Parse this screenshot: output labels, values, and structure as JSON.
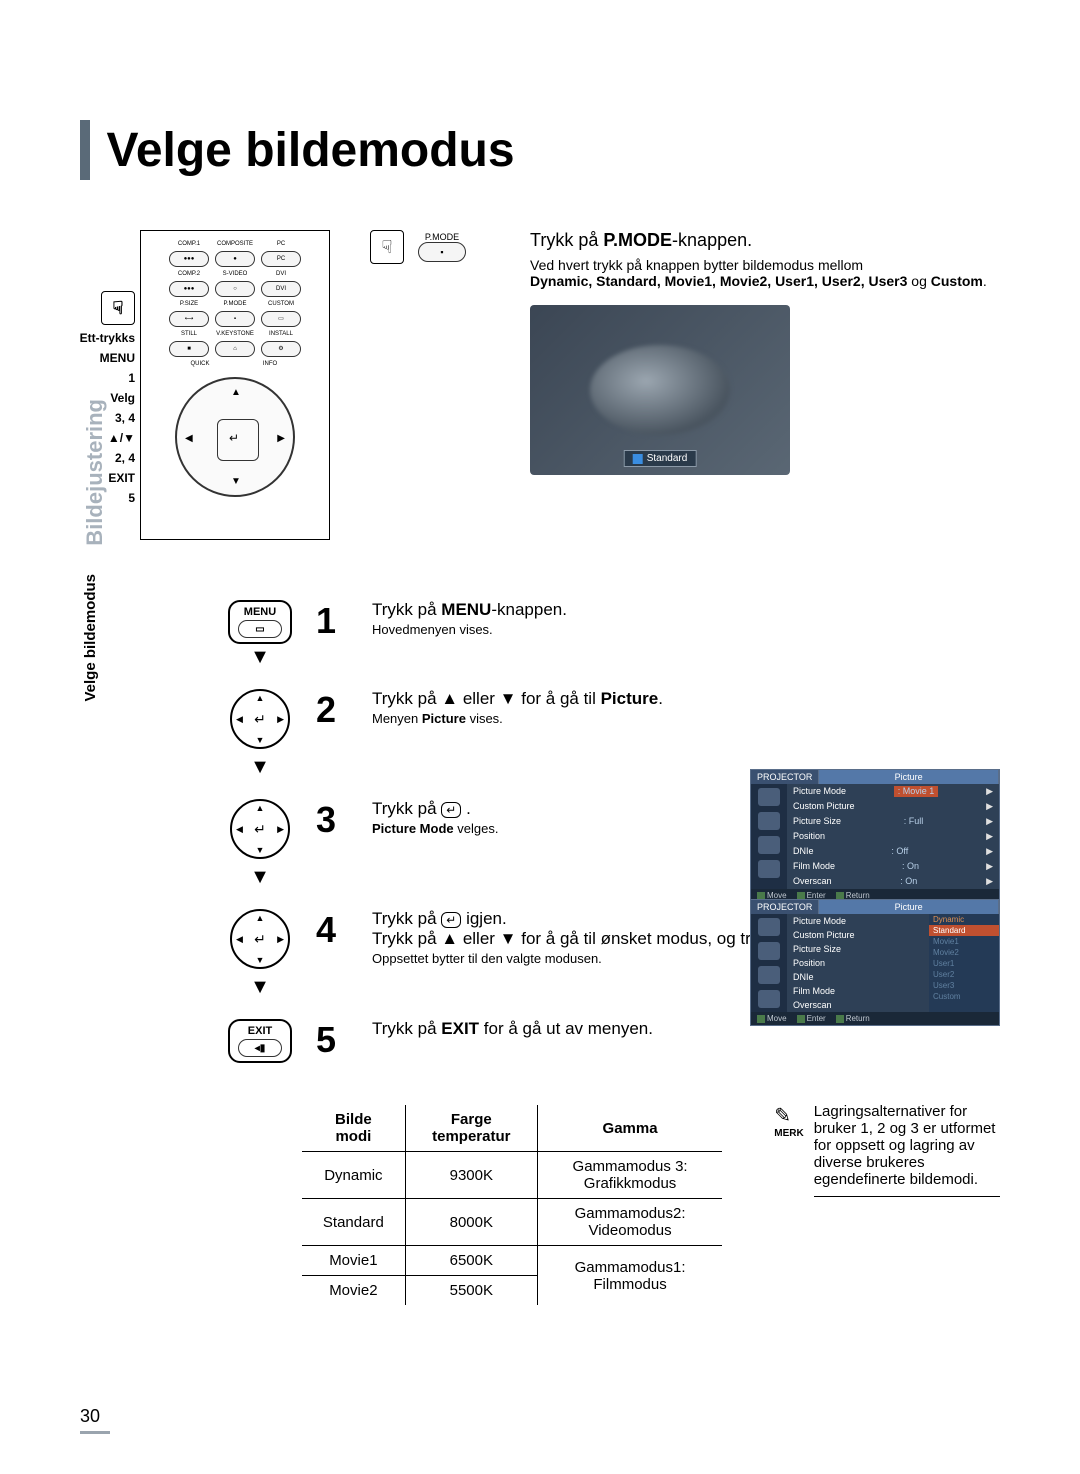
{
  "page_number": "30",
  "title": "Velge bildemodus",
  "side_tabs": {
    "gray": "Bildejustering",
    "black": "Velge bildemodus"
  },
  "remote": {
    "hand_glyph": "☟",
    "labels": [
      "Ett-trykks",
      "MENU",
      "1",
      "Velg",
      "3, 4",
      "▲/▼",
      "2, 4",
      "EXIT",
      "5"
    ],
    "row1_labels": [
      "COMP.1",
      "COMPOSITE",
      "PC"
    ],
    "row2_labels": [
      "COMP.2",
      "S-VIDEO",
      "DVI"
    ],
    "row3_labels": [
      "P.SIZE",
      "P.MODE",
      "CUSTOM"
    ],
    "row4_labels": [
      "STILL",
      "V.KEYSTONE",
      "INSTALL"
    ],
    "row5_labels": [
      "QUICK",
      "INFO"
    ],
    "corner_labels": [
      "MENU",
      "EXIT"
    ]
  },
  "pmode": {
    "label": "P.MODE",
    "heading_pre": "Trykk på ",
    "heading_bold": "P.MODE",
    "heading_post": "-knappen.",
    "sub": "Ved hvert trykk på knappen bytter bildemodus mellom",
    "sub_bold": "Dynamic, Standard, Movie1, Movie2, User1, User2, User3",
    "sub_tail": " og ",
    "sub_bold2": "Custom",
    "preview_badge": "Standard"
  },
  "steps": [
    {
      "icon_label": "MENU",
      "num": "1",
      "heading_pre": "Trykk på ",
      "heading_bold": "MENU",
      "heading_post": "-knappen.",
      "sub": "Hovedmenyen vises."
    },
    {
      "num": "2",
      "heading_pre": "Trykk på ▲ eller ▼ for å gå til ",
      "heading_bold": "Picture",
      "heading_post": ".",
      "sub_pre": "Menyen ",
      "sub_bold": "Picture",
      "sub_post": " vises."
    },
    {
      "num": "3",
      "heading": "Trykk på ",
      "heading_post": " .",
      "sub_bold": "Picture Mode",
      "sub_post": " velges."
    },
    {
      "num": "4",
      "line1": "Trykk på ",
      "line1_post": " igjen.",
      "line2": "Trykk på ▲ eller ▼ for å gå til ønsket modus, og trykk deretter på ",
      "sub": "Oppsettet bytter til den valgte modusen."
    },
    {
      "icon_label": "EXIT",
      "num": "5",
      "heading_pre": "Trykk på ",
      "heading_bold": "EXIT",
      "heading_post": " for å gå ut av menyen."
    }
  ],
  "osd1": {
    "tabs": [
      "PROJECTOR",
      "Picture"
    ],
    "rows": [
      {
        "label": "Picture Mode",
        "val": "Movie 1",
        "hl": true
      },
      {
        "label": "Custom Picture",
        "val": ""
      },
      {
        "label": "Picture Size",
        "val": "Full"
      },
      {
        "label": "Position",
        "val": ""
      },
      {
        "label": "DNIe",
        "val": "Off"
      },
      {
        "label": "Film Mode",
        "val": "On"
      },
      {
        "label": "Overscan",
        "val": "On"
      }
    ],
    "footer": [
      "Move",
      "Enter",
      "Return"
    ]
  },
  "osd2": {
    "tabs": [
      "PROJECTOR",
      "Picture"
    ],
    "rows_left": [
      "Picture Mode",
      "Custom Picture",
      "Picture Size",
      "Position",
      "DNIe",
      "Film Mode",
      "Overscan"
    ],
    "rows_right": [
      "Dynamic",
      "Standard",
      "Movie1",
      "Movie2",
      "User1",
      "User2",
      "User3",
      "Custom"
    ],
    "footer": [
      "Move",
      "Enter",
      "Return"
    ]
  },
  "table": {
    "headers": [
      "Bilde modi",
      "Farge temperatur",
      "Gamma"
    ],
    "rows": [
      [
        "Dynamic",
        "9300K",
        "Gammamodus 3: Grafikkmodus"
      ],
      [
        "Standard",
        "8000K",
        "Gammamodus2: Videomodus"
      ],
      [
        "Movie1",
        "6500K",
        "Gammamodus1: Filmmodus"
      ],
      [
        "Movie2",
        "5500K",
        ""
      ]
    ]
  },
  "note": {
    "label": "MERK",
    "text": "Lagringsalternativer for bruker 1, 2 og 3 er utformet for oppsett og lagring av diverse brukeres egendefinerte bildemodi."
  },
  "colors": {
    "accent_bar": "#5a6a78",
    "side_gray": "#a8b2bc",
    "osd_bg": "#2e4056",
    "osd_hl": "#c05030"
  }
}
